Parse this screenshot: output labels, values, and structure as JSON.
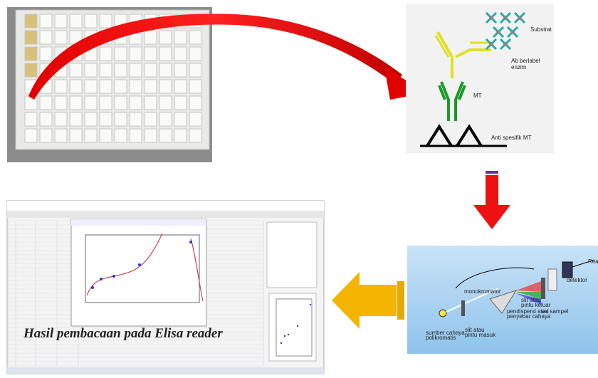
{
  "antibody_diagram": {
    "labels": [
      [
        "Substrat"
      ],
      [
        "Ab berlabel",
        "enzim"
      ],
      [
        "MT"
      ],
      [
        "Anti spesifik MT"
      ]
    ]
  },
  "spectrophotometer": {
    "labels": [
      [
        "Read"
      ],
      [
        "detektor"
      ],
      [
        "sel sampel"
      ],
      [
        "slit atau",
        "pintu keluar"
      ],
      [
        "monokromator"
      ],
      [
        "pendispersi atau",
        "penyebar cahaya"
      ],
      [
        "slit atau",
        "pintu masuk"
      ],
      [
        "sumber cahaya",
        "polikromatis"
      ]
    ]
  },
  "elisa_reader": {
    "caption": "Hasil pembacaan pada Elisa reader"
  }
}
